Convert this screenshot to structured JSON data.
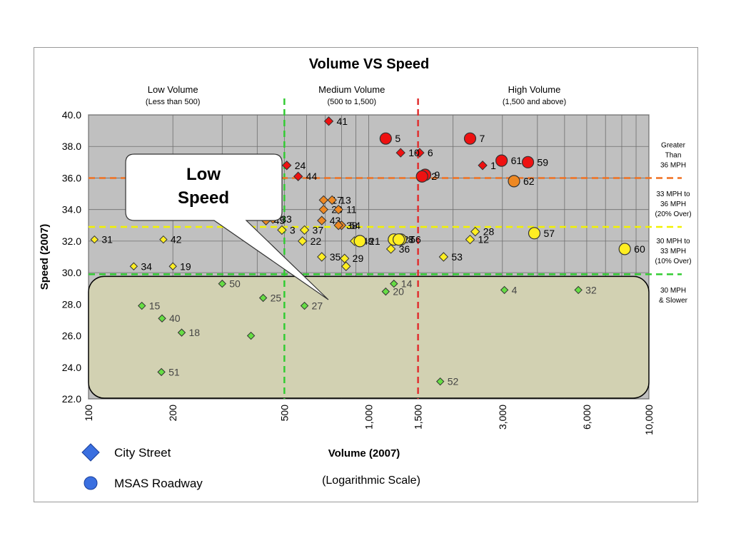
{
  "chart_data": {
    "type": "scatter",
    "title": "Volume VS Speed",
    "xlabel": "Volume (2007)",
    "xlabel_note": "(Logarithmic Scale)",
    "ylabel": "Speed (2007)",
    "x_scale": "log",
    "xlim": [
      100,
      10000
    ],
    "ylim": [
      22,
      40
    ],
    "x_ticks": [
      100,
      200,
      500,
      1000,
      1500,
      3000,
      6000,
      10000
    ],
    "x_tick_labels": [
      "100",
      "200",
      "500",
      "1,000",
      "1,500",
      "3,000",
      "6,000",
      "10,000"
    ],
    "y_ticks": [
      22,
      24,
      26,
      28,
      30,
      32,
      34,
      36,
      38,
      40
    ],
    "y_tick_labels": [
      "22.0",
      "24.0",
      "26.0",
      "28.0",
      "30.0",
      "32.0",
      "34.0",
      "36.0",
      "38.0",
      "40.0"
    ],
    "grid": true,
    "volume_zones": [
      {
        "title": "Low Volume",
        "subtitle": "(Less than 500)",
        "x": 200
      },
      {
        "title": "Medium Volume",
        "subtitle": "(500 to 1,500)",
        "x": 870
      },
      {
        "title": "High Volume",
        "subtitle": "(1,500 and above)",
        "x": 3900
      }
    ],
    "speed_zones": [
      {
        "lines": [
          "Greater",
          "Than",
          "36 MPH"
        ],
        "y": 37.5
      },
      {
        "lines": [
          "33 MPH to",
          "36 MPH",
          "(20% Over)"
        ],
        "y": 34.4
      },
      {
        "lines": [
          "30 MPH to",
          "33 MPH",
          "(10% Over)"
        ],
        "y": 31.4
      },
      {
        "lines": [
          "30 MPH",
          "& Slower"
        ],
        "y": 28.6
      }
    ],
    "reference_lines": {
      "vertical": [
        {
          "x": 500,
          "color": "#33cc33"
        },
        {
          "x": 1500,
          "color": "#e03030"
        }
      ],
      "horizontal": [
        {
          "y": 36,
          "color": "#f07020"
        },
        {
          "y": 32.9,
          "color": "#f2f200"
        },
        {
          "y": 29.9,
          "color": "#33cc33"
        }
      ]
    },
    "legend": [
      {
        "label": "City Street",
        "marker": "diamond"
      },
      {
        "label": "MSAS Roadway",
        "marker": "circle"
      }
    ],
    "legend_color": "#3a6fe0",
    "category_colors": {
      "red": "#ee1111",
      "orange": "#ee8822",
      "yellow": "#ffee22",
      "green": "#66dd44"
    },
    "points": [
      {
        "label": "41",
        "x": 720,
        "y": 39.6,
        "shape": "diamond",
        "cat": "red"
      },
      {
        "label": "5",
        "x": 1150,
        "y": 38.5,
        "shape": "circle",
        "cat": "red"
      },
      {
        "label": "6",
        "x": 1520,
        "y": 37.6,
        "shape": "diamond",
        "cat": "red"
      },
      {
        "label": "10",
        "x": 1300,
        "y": 37.6,
        "shape": "diamond",
        "cat": "red"
      },
      {
        "label": "7",
        "x": 2300,
        "y": 38.5,
        "shape": "circle",
        "cat": "red"
      },
      {
        "label": "1",
        "x": 2550,
        "y": 36.8,
        "shape": "diamond",
        "cat": "red"
      },
      {
        "label": "61",
        "x": 2980,
        "y": 37.1,
        "shape": "circle",
        "cat": "red"
      },
      {
        "label": "59",
        "x": 3700,
        "y": 37.0,
        "shape": "circle",
        "cat": "red"
      },
      {
        "label": "9",
        "x": 1590,
        "y": 36.2,
        "shape": "circle",
        "cat": "red"
      },
      {
        "label": "2",
        "x": 1550,
        "y": 36.1,
        "shape": "circle",
        "cat": "red"
      },
      {
        "label": "24",
        "x": 510,
        "y": 36.8,
        "shape": "diamond",
        "cat": "red"
      },
      {
        "label": "44",
        "x": 560,
        "y": 36.1,
        "shape": "diamond",
        "cat": "red"
      },
      {
        "label": "62",
        "x": 3300,
        "y": 35.8,
        "shape": "circle",
        "cat": "orange"
      },
      {
        "label": "17",
        "x": 690,
        "y": 34.6,
        "shape": "diamond",
        "cat": "orange"
      },
      {
        "label": "13",
        "x": 740,
        "y": 34.6,
        "shape": "diamond",
        "cat": "orange"
      },
      {
        "label": "23",
        "x": 690,
        "y": 34.0,
        "shape": "diamond",
        "cat": "orange"
      },
      {
        "label": "11",
        "x": 780,
        "y": 34.0,
        "shape": "diamond",
        "cat": "orange"
      },
      {
        "label": "54",
        "x": 800,
        "y": 33.0,
        "shape": "diamond",
        "cat": "orange"
      },
      {
        "label": "33",
        "x": 455,
        "y": 33.4,
        "shape": "diamond",
        "cat": "orange"
      },
      {
        "label": "45",
        "x": 430,
        "y": 33.3,
        "shape": "diamond",
        "cat": "orange"
      },
      {
        "label": "43",
        "x": 680,
        "y": 33.3,
        "shape": "diamond",
        "cat": "orange"
      },
      {
        "label": "38",
        "x": 780,
        "y": 33.0,
        "shape": "diamond",
        "cat": "orange"
      },
      {
        "label": "3",
        "x": 490,
        "y": 32.7,
        "shape": "diamond",
        "cat": "yellow"
      },
      {
        "label": "37",
        "x": 590,
        "y": 32.7,
        "shape": "diamond",
        "cat": "yellow"
      },
      {
        "label": "28",
        "x": 2400,
        "y": 32.6,
        "shape": "diamond",
        "cat": "yellow"
      },
      {
        "label": "57",
        "x": 3900,
        "y": 32.5,
        "shape": "circle",
        "cat": "yellow"
      },
      {
        "label": "31",
        "x": 105,
        "y": 32.1,
        "shape": "diamond",
        "cat": "yellow"
      },
      {
        "label": "42",
        "x": 185,
        "y": 32.1,
        "shape": "diamond",
        "cat": "yellow"
      },
      {
        "label": "22",
        "x": 580,
        "y": 32.0,
        "shape": "diamond",
        "cat": "yellow"
      },
      {
        "label": "48",
        "x": 890,
        "y": 32.0,
        "shape": "diamond",
        "cat": "yellow"
      },
      {
        "label": "21",
        "x": 930,
        "y": 32.0,
        "shape": "circle",
        "cat": "yellow"
      },
      {
        "label": "27",
        "x": 1230,
        "y": 32.1,
        "shape": "circle",
        "cat": "yellow"
      },
      {
        "label": "56",
        "x": 1300,
        "y": 32.1,
        "shape": "circle",
        "cat": "yellow"
      },
      {
        "label": "8",
        "x": 1280,
        "y": 32.1,
        "shape": "circle",
        "cat": "yellow"
      },
      {
        "label": "36",
        "x": 1200,
        "y": 31.5,
        "shape": "diamond",
        "cat": "yellow"
      },
      {
        "label": "12",
        "x": 2300,
        "y": 32.1,
        "shape": "diamond",
        "cat": "yellow"
      },
      {
        "label": "60",
        "x": 8200,
        "y": 31.5,
        "shape": "circle",
        "cat": "yellow"
      },
      {
        "label": "35",
        "x": 680,
        "y": 31.0,
        "shape": "diamond",
        "cat": "yellow"
      },
      {
        "label": "53",
        "x": 1850,
        "y": 31.0,
        "shape": "diamond",
        "cat": "yellow"
      },
      {
        "label": "29",
        "x": 820,
        "y": 30.9,
        "shape": "diamond",
        "cat": "yellow"
      },
      {
        "label": "",
        "x": 830,
        "y": 30.4,
        "shape": "diamond",
        "cat": "yellow"
      },
      {
        "label": "34",
        "x": 145,
        "y": 30.4,
        "shape": "diamond",
        "cat": "yellow"
      },
      {
        "label": "19",
        "x": 200,
        "y": 30.4,
        "shape": "diamond",
        "cat": "yellow"
      },
      {
        "label": "50",
        "x": 300,
        "y": 29.3,
        "shape": "diamond",
        "cat": "green"
      },
      {
        "label": "14",
        "x": 1230,
        "y": 29.3,
        "shape": "diamond",
        "cat": "green"
      },
      {
        "label": "20",
        "x": 1150,
        "y": 28.8,
        "shape": "diamond",
        "cat": "green"
      },
      {
        "label": "4",
        "x": 3050,
        "y": 28.9,
        "shape": "diamond",
        "cat": "green"
      },
      {
        "label": "32",
        "x": 5600,
        "y": 28.9,
        "shape": "diamond",
        "cat": "green"
      },
      {
        "label": "25",
        "x": 420,
        "y": 28.4,
        "shape": "diamond",
        "cat": "green"
      },
      {
        "label": "27",
        "x": 590,
        "y": 27.9,
        "shape": "diamond",
        "cat": "green"
      },
      {
        "label": "15",
        "x": 155,
        "y": 27.9,
        "shape": "diamond",
        "cat": "green"
      },
      {
        "label": "40",
        "x": 183,
        "y": 27.1,
        "shape": "diamond",
        "cat": "green"
      },
      {
        "label": "18",
        "x": 215,
        "y": 26.2,
        "shape": "diamond",
        "cat": "green"
      },
      {
        "label": "",
        "x": 380,
        "y": 26.0,
        "shape": "diamond",
        "cat": "green"
      },
      {
        "label": "51",
        "x": 182,
        "y": 23.7,
        "shape": "diamond",
        "cat": "green"
      },
      {
        "label": "52",
        "x": 1800,
        "y": 23.1,
        "shape": "diamond",
        "cat": "green"
      }
    ],
    "callout": {
      "lines": [
        "Low",
        "Speed"
      ]
    }
  }
}
